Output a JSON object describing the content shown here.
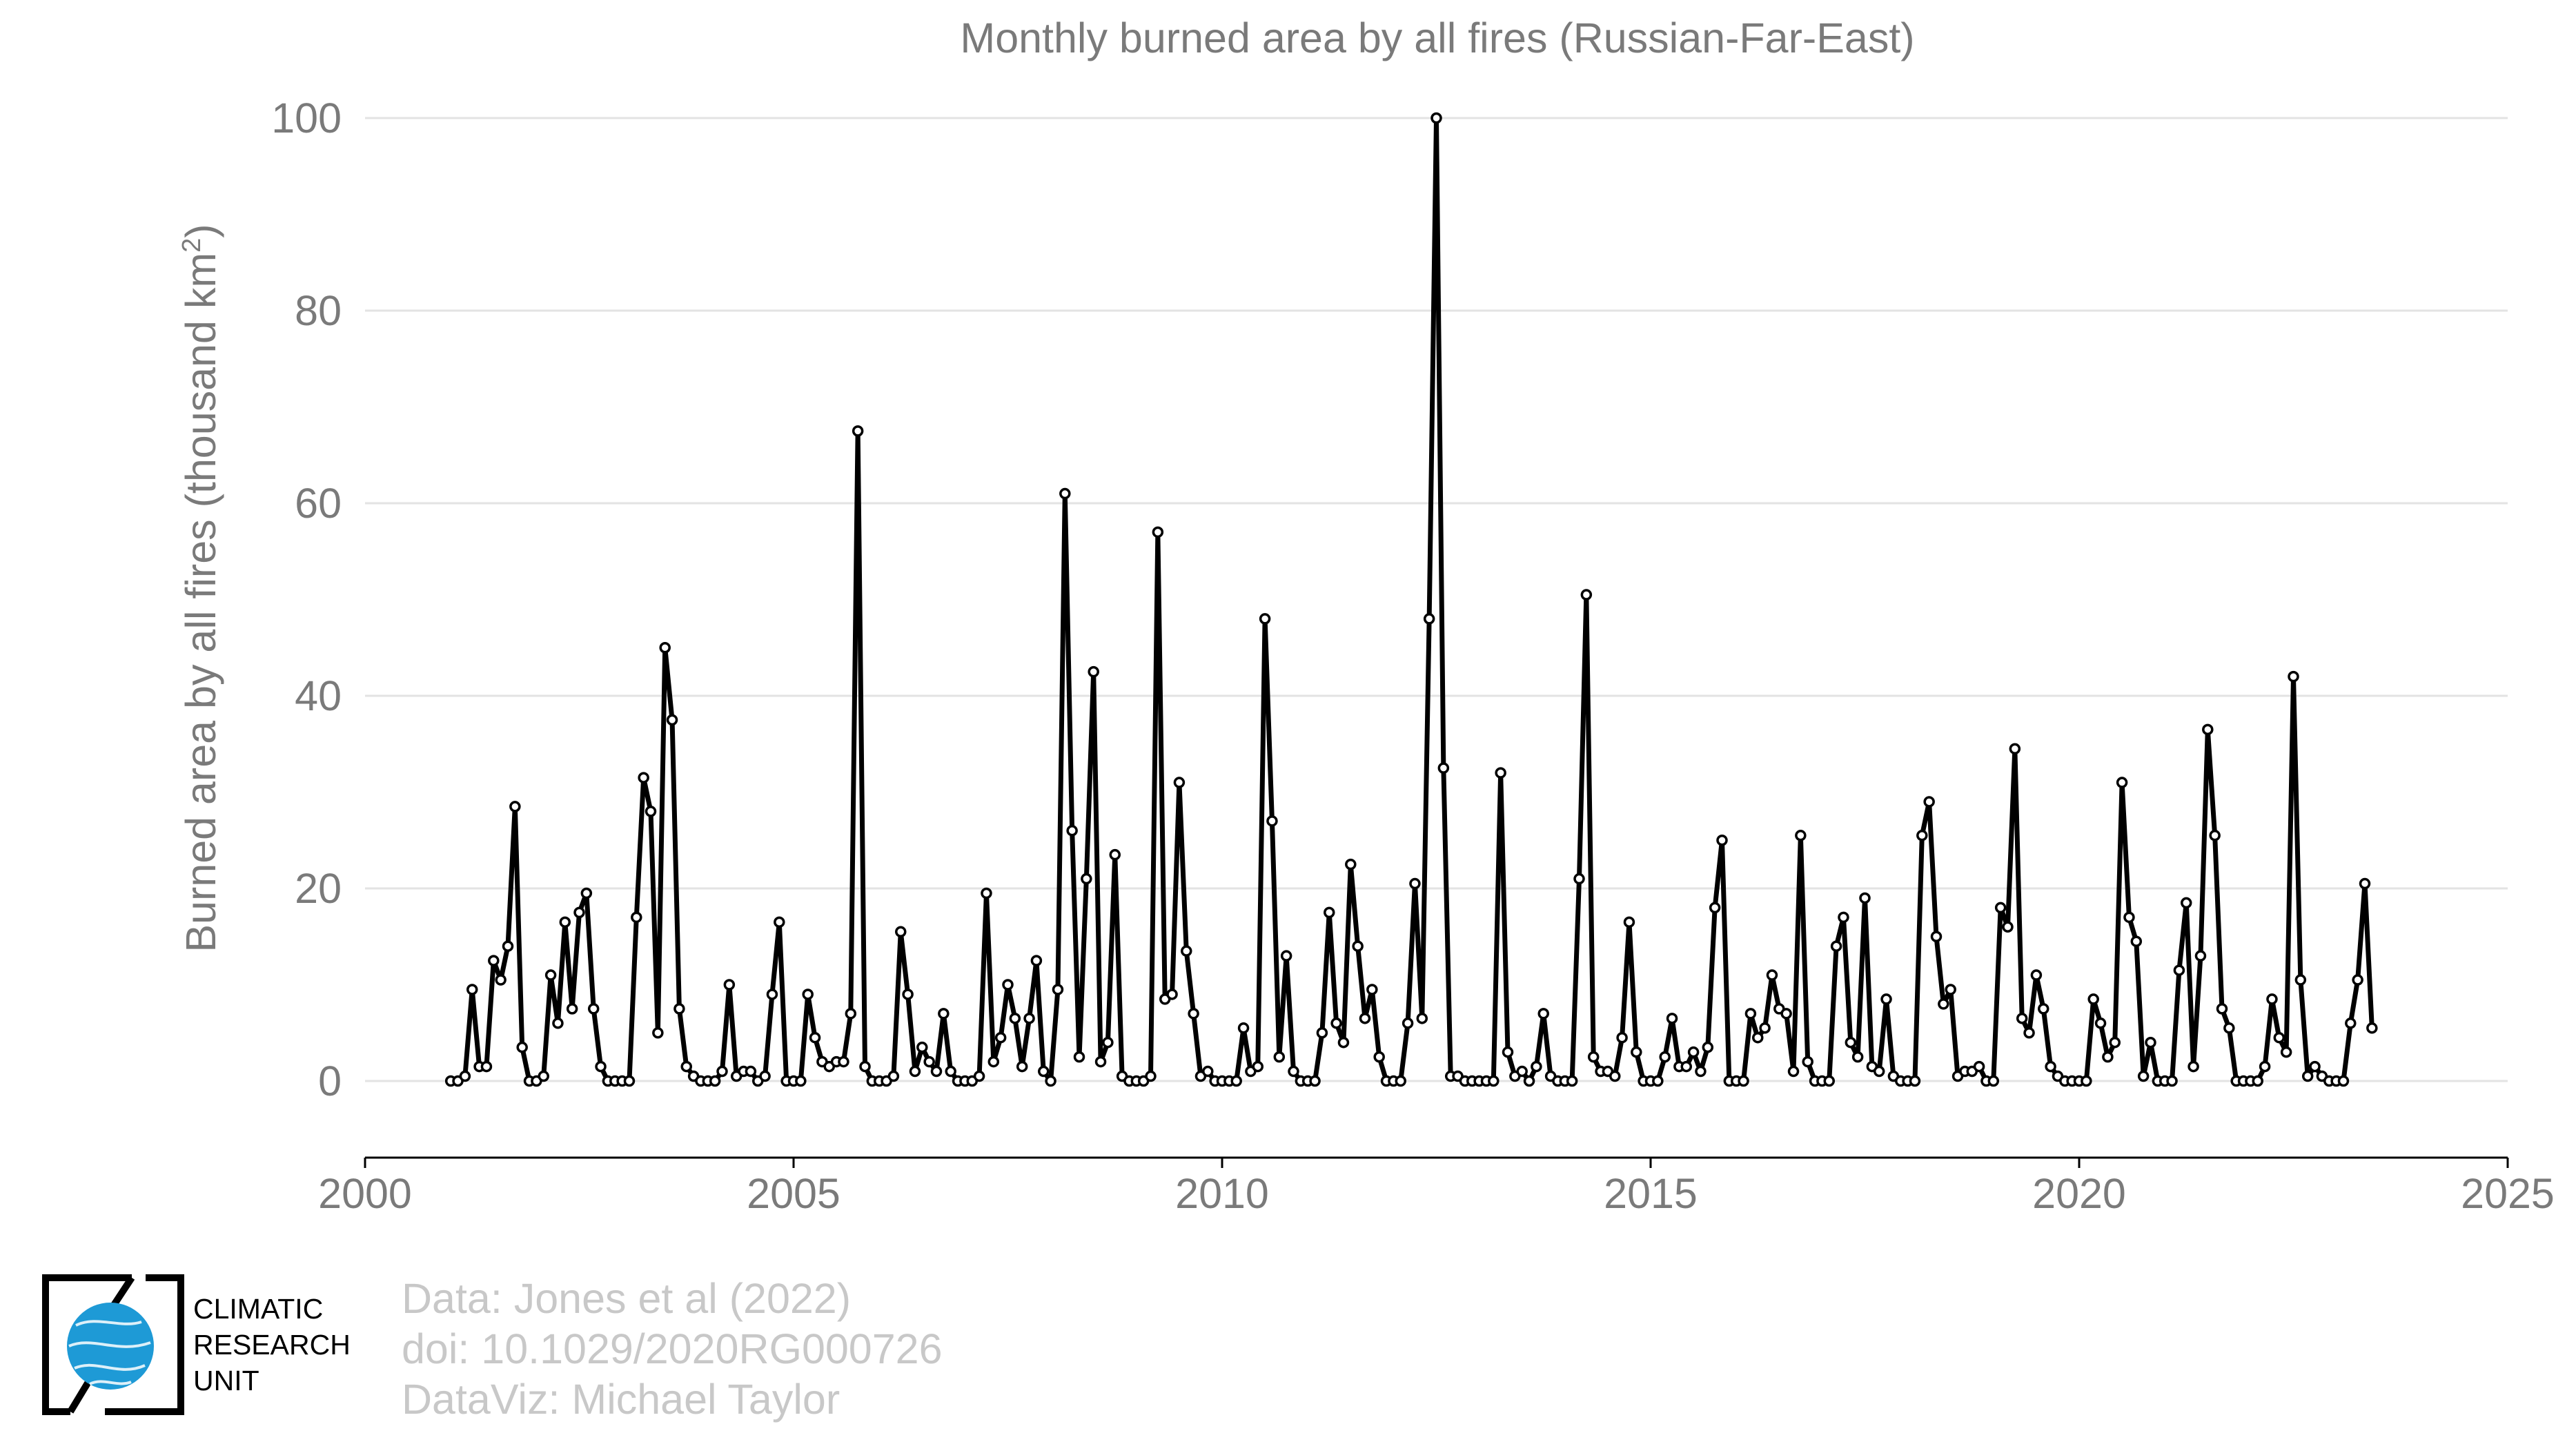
{
  "chart_data": {
    "type": "line",
    "title": "Monthly burned area by all fires (Russian-Far-East)",
    "ylabel": "Burned area by all fires (thousand km",
    "ylabel_sup": "2",
    "ylabel_end": ")",
    "xlabel": "",
    "xlim": [
      2000,
      2025
    ],
    "ylim": [
      -8,
      100
    ],
    "xticks": [
      "2000",
      "2005",
      "2010",
      "2015",
      "2020",
      "2025"
    ],
    "yticks": [
      "0",
      "20",
      "40",
      "60",
      "80",
      "100"
    ],
    "grid": true,
    "line_color": "#000000",
    "marker": "open-circle",
    "series": [
      {
        "start": "2001-01",
        "frequency": "monthly",
        "values": [
          0,
          0,
          0.5,
          9.5,
          1.5,
          1.5,
          12.5,
          10.5,
          14,
          28.5,
          3.5,
          0,
          0,
          0.5,
          11,
          6,
          16.5,
          7.5,
          17.5,
          19.5,
          7.5,
          1.5,
          0,
          0,
          0,
          0,
          17,
          31.5,
          28,
          5,
          45,
          37.5,
          7.5,
          1.5,
          0.5,
          0,
          0,
          0,
          1,
          10,
          0.5,
          1,
          1,
          0,
          0.5,
          9,
          16.5,
          0,
          0,
          0,
          9,
          4.5,
          2,
          1.5,
          2,
          2,
          7,
          67.5,
          1.5,
          0,
          0,
          0,
          0.5,
          15.5,
          9,
          1,
          3.5,
          2,
          1,
          7,
          1,
          0,
          0,
          0,
          0.5,
          19.5,
          2,
          4.5,
          10,
          6.5,
          1.5,
          6.5,
          12.5,
          1,
          0,
          9.5,
          61,
          26,
          2.5,
          21,
          42.5,
          2,
          4,
          23.5,
          0.5,
          0,
          0,
          0,
          0.5,
          57,
          8.5,
          9,
          31,
          13.5,
          7,
          0.5,
          1,
          0,
          0,
          0,
          0,
          5.5,
          1,
          1.5,
          48,
          27,
          2.5,
          13,
          1,
          0,
          0,
          0,
          5,
          17.5,
          6,
          4,
          22.5,
          14,
          6.5,
          9.5,
          2.5,
          0,
          0,
          0,
          6,
          20.5,
          6.5,
          48,
          100,
          32.5,
          0.5,
          0.5,
          0,
          0,
          0,
          0,
          0,
          32,
          3,
          0.5,
          1,
          0,
          1.5,
          7,
          0.5,
          0,
          0,
          0,
          21,
          50.5,
          2.5,
          1,
          1,
          0.5,
          4.5,
          16.5,
          3,
          0,
          0,
          0,
          2.5,
          6.5,
          1.5,
          1.5,
          3,
          1,
          3.5,
          18,
          25,
          0,
          0,
          0,
          7,
          4.5,
          5.5,
          11,
          7.5,
          7,
          1,
          25.5,
          2,
          0,
          0,
          0,
          14,
          17,
          4,
          2.5,
          19,
          1.5,
          1,
          8.5,
          0.5,
          0,
          0,
          0,
          25.5,
          29,
          15,
          8,
          9.5,
          0.5,
          1,
          1,
          1.5,
          0,
          0,
          18,
          16,
          34.5,
          6.5,
          5,
          11,
          7.5,
          1.5,
          0.5,
          0,
          0,
          0,
          0,
          8.5,
          6,
          2.5,
          4,
          31,
          17,
          14.5,
          0.5,
          4,
          0,
          0,
          0,
          11.5,
          18.5,
          1.5,
          13,
          36.5,
          25.5,
          7.5,
          5.5,
          0,
          0,
          0,
          0,
          1.5,
          8.5,
          4.5,
          3,
          42,
          10.5,
          0.5,
          1.5,
          0.5,
          0,
          0,
          0,
          6,
          10.5,
          20.5,
          5.5
        ]
      }
    ]
  },
  "credits": {
    "line1": "Data: Jones et al (2022)",
    "line2": "doi: 10.1029/2020RG000726",
    "line3": "DataViz: Michael Taylor"
  },
  "logo": {
    "line1": "CLIMATIC",
    "line2": "RESEARCH",
    "line3": "UNIT",
    "globe_color": "#1e9ad6"
  }
}
